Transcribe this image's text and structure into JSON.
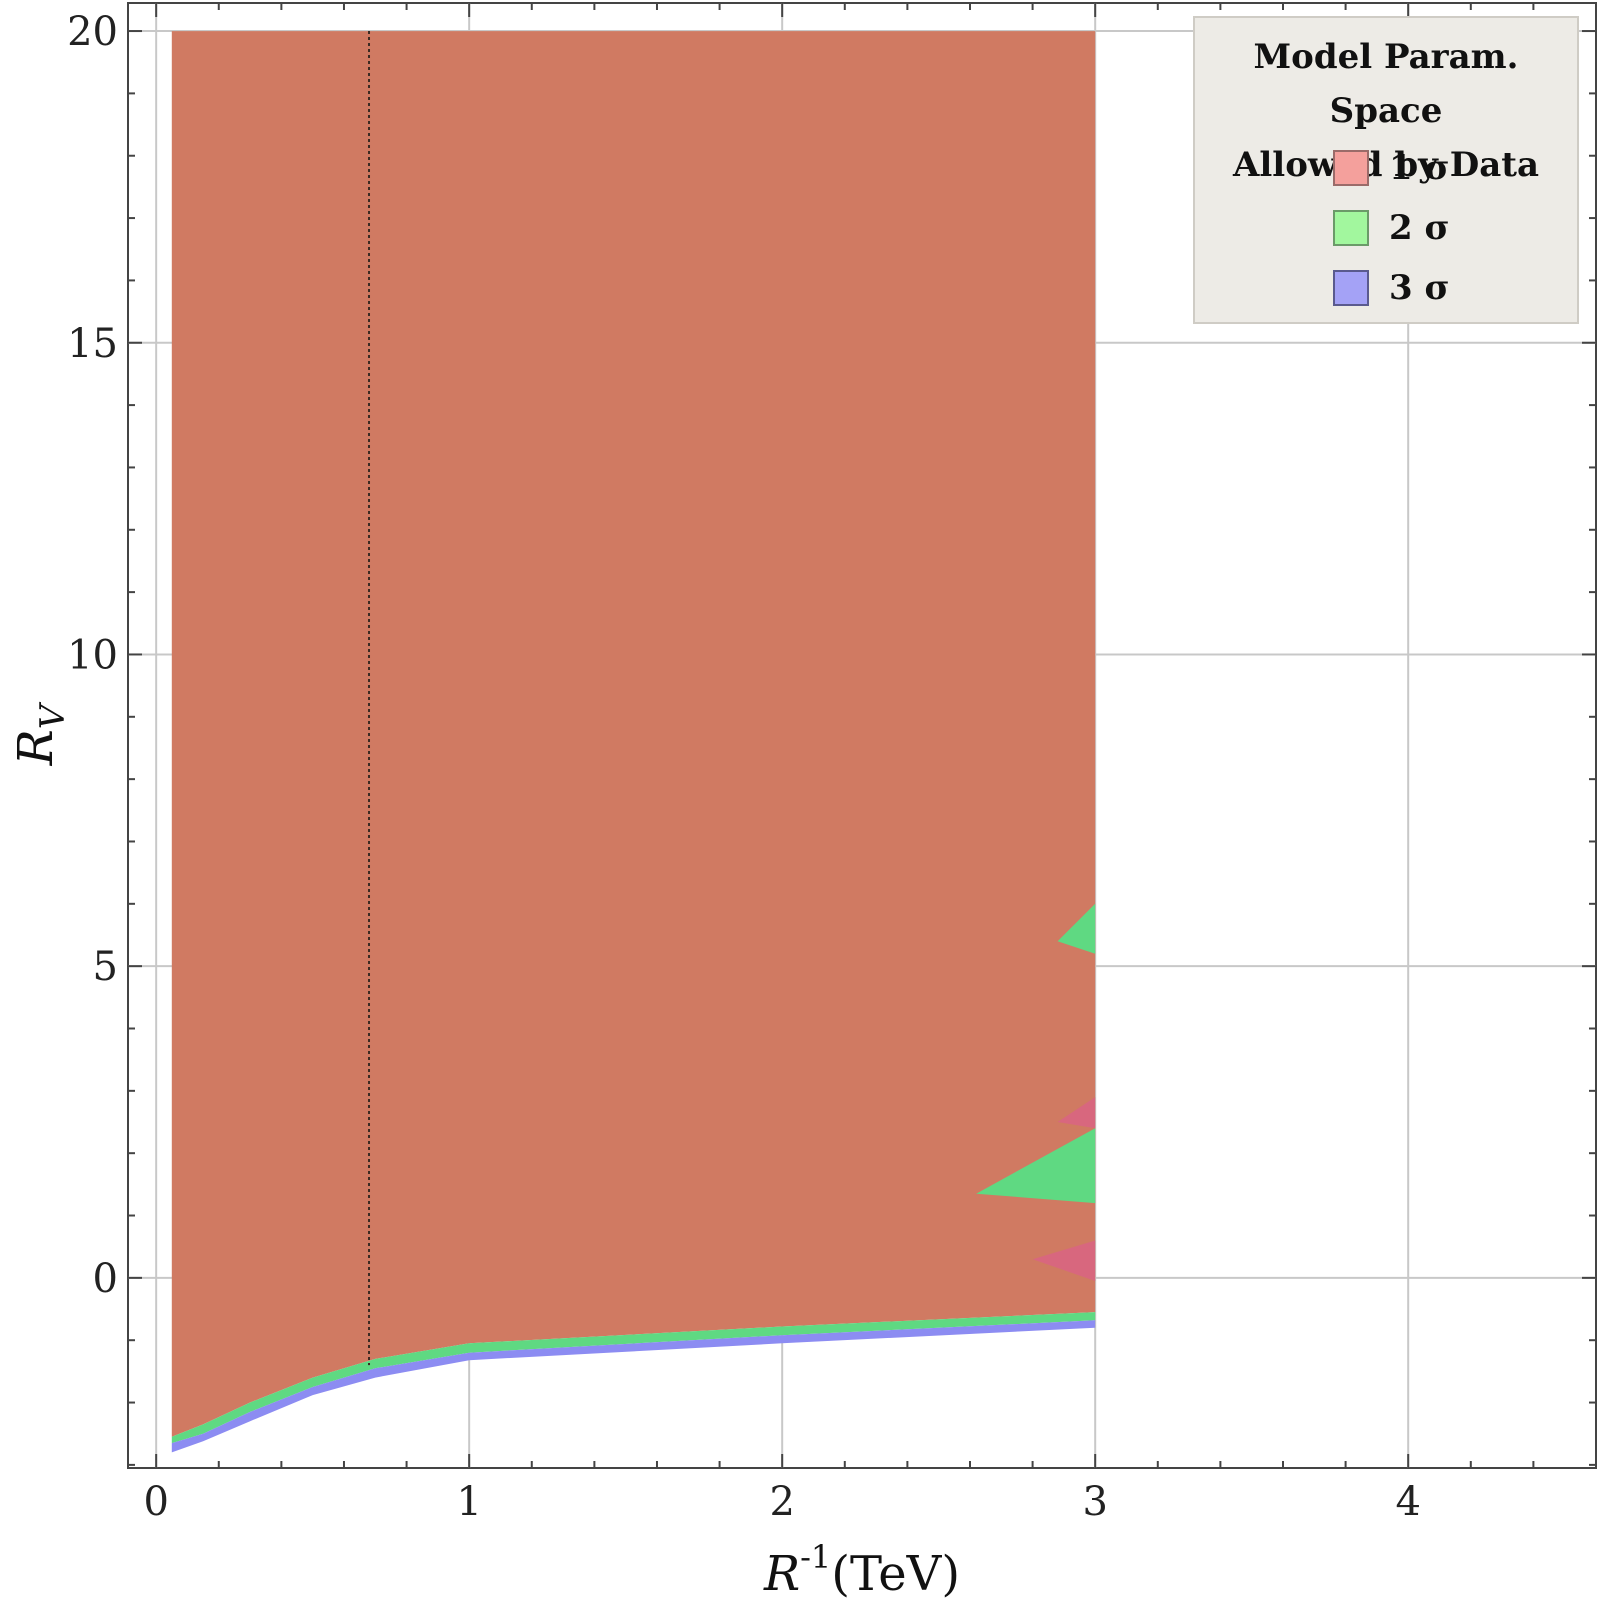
{
  "chart_data": {
    "type": "area",
    "title": "",
    "xlabel_base": "R",
    "xlabel_sup": "-1",
    "xlabel_unit": "(TeV)",
    "ylabel_base": "R",
    "ylabel_sub": "V",
    "xlim": [
      -0.09,
      4.6
    ],
    "ylim": [
      -3.05,
      20.45
    ],
    "x_ticks": [
      0,
      1,
      2,
      3,
      4
    ],
    "y_ticks": [
      0,
      5,
      10,
      15,
      20
    ],
    "grid": true,
    "legend_position": "top-right",
    "legend": {
      "title_line1": "Model Param. Space",
      "title_line2": "Allowed by Data",
      "entries": [
        {
          "label": "1 σ",
          "color": "#f4a09c",
          "border": "#9a6b69"
        },
        {
          "label": "2 σ",
          "color": "#a2f79e",
          "border": "#6b9a69"
        },
        {
          "label": "3 σ",
          "color": "#a4a2f6",
          "border": "#5a5a8e"
        }
      ]
    },
    "colors": {
      "one_sigma": "#d07a62",
      "two_sigma": "#5fd982",
      "three_sigma": "#8c8cf2",
      "magenta_patch": "#d8677e"
    },
    "series": [
      {
        "name": "1 σ",
        "fill": "#d07a62",
        "polygon": [
          [
            0.05,
            20
          ],
          [
            3.0,
            20
          ],
          [
            3.0,
            -0.55
          ],
          [
            2.0,
            -0.78
          ],
          [
            1.0,
            -1.05
          ],
          [
            0.7,
            -1.3
          ],
          [
            0.5,
            -1.6
          ],
          [
            0.3,
            -2.0
          ],
          [
            0.15,
            -2.35
          ],
          [
            0.05,
            -2.55
          ]
        ]
      },
      {
        "name": "2 σ",
        "fill": "#5fd982",
        "polygon": [
          [
            0.05,
            -2.55
          ],
          [
            0.15,
            -2.35
          ],
          [
            0.3,
            -2.0
          ],
          [
            0.5,
            -1.6
          ],
          [
            0.7,
            -1.3
          ],
          [
            1.0,
            -1.05
          ],
          [
            2.0,
            -0.78
          ],
          [
            3.0,
            -0.55
          ],
          [
            3.0,
            -0.68
          ],
          [
            2.0,
            -0.92
          ],
          [
            1.0,
            -1.2
          ],
          [
            0.7,
            -1.45
          ],
          [
            0.5,
            -1.75
          ],
          [
            0.3,
            -2.15
          ],
          [
            0.15,
            -2.5
          ],
          [
            0.05,
            -2.65
          ]
        ]
      },
      {
        "name": "3 σ",
        "fill": "#8c8cf2",
        "polygon": [
          [
            0.05,
            -2.65
          ],
          [
            0.15,
            -2.5
          ],
          [
            0.3,
            -2.15
          ],
          [
            0.5,
            -1.75
          ],
          [
            0.7,
            -1.45
          ],
          [
            1.0,
            -1.2
          ],
          [
            2.0,
            -0.92
          ],
          [
            3.0,
            -0.68
          ],
          [
            3.0,
            -0.8
          ],
          [
            2.0,
            -1.05
          ],
          [
            1.0,
            -1.32
          ],
          [
            0.7,
            -1.6
          ],
          [
            0.5,
            -1.88
          ],
          [
            0.3,
            -2.3
          ],
          [
            0.15,
            -2.62
          ],
          [
            0.05,
            -2.8
          ]
        ]
      }
    ],
    "patches": [
      {
        "fill": "#5fd982",
        "polygon": [
          [
            2.88,
            5.4
          ],
          [
            3.0,
            6.0
          ],
          [
            3.0,
            5.2
          ]
        ]
      },
      {
        "fill": "#5fd982",
        "polygon": [
          [
            2.62,
            1.35
          ],
          [
            3.0,
            2.4
          ],
          [
            3.0,
            1.2
          ]
        ]
      },
      {
        "fill": "#d8677e",
        "polygon": [
          [
            2.88,
            2.5
          ],
          [
            3.0,
            2.9
          ],
          [
            3.0,
            2.4
          ]
        ]
      },
      {
        "fill": "#d8677e",
        "polygon": [
          [
            2.8,
            0.3
          ],
          [
            3.0,
            0.6
          ],
          [
            3.0,
            -0.05
          ]
        ]
      }
    ],
    "vertical_line_x": 0.68
  }
}
